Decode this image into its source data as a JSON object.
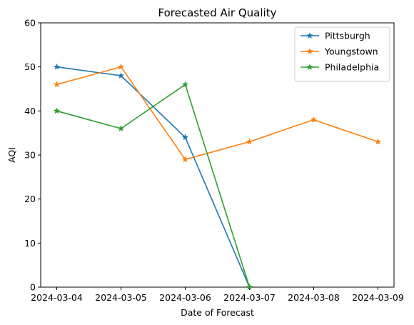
{
  "chart_data": {
    "type": "line",
    "title": "Forecasted Air Quality",
    "xlabel": "Date of Forecast",
    "ylabel": "AQI",
    "x": [
      "2024-03-04",
      "2024-03-05",
      "2024-03-06",
      "2024-03-07",
      "2024-03-08",
      "2024-03-09"
    ],
    "ylim": [
      0,
      60
    ],
    "yticks": [
      0,
      10,
      20,
      30,
      40,
      50,
      60
    ],
    "grid": false,
    "legend": "top-right",
    "marker": "star",
    "series": [
      {
        "name": "Pittsburgh",
        "color": "#1f77b4",
        "values": [
          50,
          48,
          34,
          0,
          null,
          null
        ]
      },
      {
        "name": "Youngstown",
        "color": "#ff7f0e",
        "values": [
          46,
          50,
          29,
          33,
          38,
          33
        ]
      },
      {
        "name": "Philadelphia",
        "color": "#2ca02c",
        "values": [
          40,
          36,
          46,
          0,
          null,
          null
        ]
      }
    ]
  }
}
